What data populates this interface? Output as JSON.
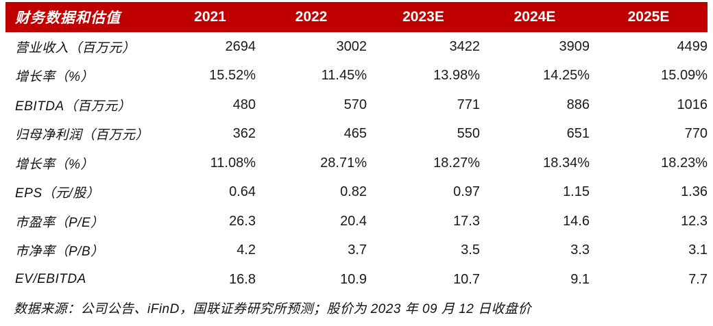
{
  "table": {
    "title": "财务数据和估值",
    "columns": [
      "2021",
      "2022",
      "2023E",
      "2024E",
      "2025E"
    ],
    "rows": [
      {
        "label": "营业收入（百万元）",
        "values": [
          "2694",
          "3002",
          "3422",
          "3909",
          "4499"
        ]
      },
      {
        "label": "增长率（%）",
        "values": [
          "15.52%",
          "11.45%",
          "13.98%",
          "14.25%",
          "15.09%"
        ]
      },
      {
        "label": "EBITDA（百万元）",
        "values": [
          "480",
          "570",
          "771",
          "886",
          "1016"
        ]
      },
      {
        "label": "归母净利润（百万元）",
        "values": [
          "362",
          "465",
          "550",
          "651",
          "770"
        ]
      },
      {
        "label": "增长率（%）",
        "values": [
          "11.08%",
          "28.71%",
          "18.27%",
          "18.34%",
          "18.23%"
        ]
      },
      {
        "label": "EPS（元/股）",
        "values": [
          "0.64",
          "0.82",
          "0.97",
          "1.15",
          "1.36"
        ]
      },
      {
        "label": "市盈率（P/E）",
        "values": [
          "26.3",
          "20.4",
          "17.3",
          "14.6",
          "12.3"
        ]
      },
      {
        "label": "市净率（P/B）",
        "values": [
          "4.2",
          "3.7",
          "3.5",
          "3.3",
          "3.1"
        ]
      },
      {
        "label": "EV/EBITDA",
        "values": [
          "16.8",
          "10.9",
          "10.7",
          "9.1",
          "7.7"
        ]
      }
    ],
    "footnote": "数据来源：公司公告、iFinD，国联证券研究所预测；股价为 2023 年 09 月 12 日收盘价"
  },
  "colors": {
    "header_bg": "#C00000",
    "header_text": "#FFFFFF",
    "body_text": "#1A1A1A"
  }
}
